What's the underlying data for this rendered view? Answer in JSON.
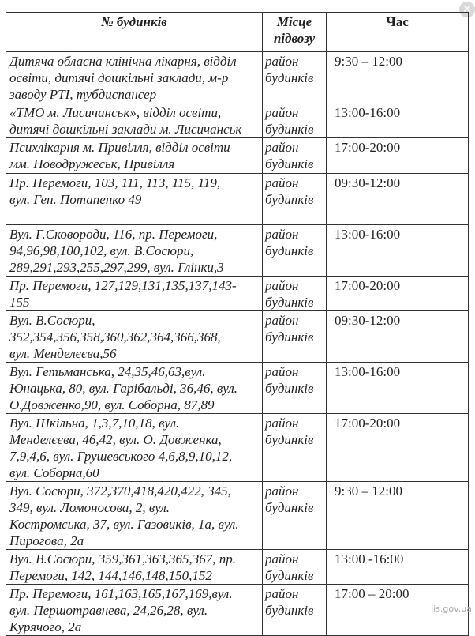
{
  "table": {
    "headers": [
      "№ будинків",
      "Місце\nпідвозу",
      "Час"
    ],
    "rows": [
      {
        "address": "Дитяча обласна клінічна лікарня, відділ\nосвіти, дитячі дошкільні заклади, м-р\nзаводу РТІ, тубдиспансер",
        "place": " район\nбудинків",
        "time": " 9:30 – 12:00"
      },
      {
        "address": "«ТМО м. Лисичанськ», відділ освіти,\nдитячі дошкільні заклади м. Лисичанськ",
        "place": "район\nбудинків",
        "time": "13:00-16:00"
      },
      {
        "address": "Психлікарня м. Привілля, відділ освіти\nмм. Новодружеськ, Привілля",
        "place": " район\nбудинків",
        "time": "  17:00-20:00"
      },
      {
        "address": "Пр. Перемоги, 103, 111, 113, 115, 119,\nвул. Ген. Потапенко 49",
        "place": "район\nбудинків",
        "time": " 09:30-12:00"
      },
      {
        "address": "Вул. Г.Сковороди, 116, пр. Перемоги,\n94,96,98,100,102, вул. В.Сосюри,\n289,291,293,255,297,299, вул. Глінки,3",
        "place": "район\nбудинків",
        "time": " 13:00-16:00"
      },
      {
        "address": "Пр. Перемоги, 127,129,131,135,137,143-\n155",
        "place": "район\nбудинків",
        "time": "17:00-20:00"
      },
      {
        "address": "Вул. В.Сосюри,\n352,354,356,358,360,362,364,366,368,\nвул. Менделєєва,56",
        "place": " район\nбудинків",
        "time": "09:30-12:00"
      },
      {
        "address": "Вул. Гетьманська, 24,35,46,63,вул.\nЮнацька, 80, вул. Гарібальді, 36,46, вул.\nО.Довженко,90, вул. Соборна, 87,89",
        "place": "район\nбудинків",
        "time": "13:00-16:00"
      },
      {
        "address": "Вул. Шкільна, 1,3,7,10,18, вул.\nМенделєєва, 46,42, вул. О. Довженка,\n7,9,4,6, вул. Грушевського 4,6,8,9,10,12,\nвул. Соборна,60",
        "place": "район\nбудинків",
        "time": "17:00-20:00"
      },
      {
        "address": "Вул. Сосюри, 372,370,418,420,422, 345,\n349, вул. Ломоносова, 2, вул.\nКостромська, 37, вул. Газовиків, 1а, вул.\nПирогова, 2а",
        "place": "район\nбудинків",
        "time": "9:30 – 12:00"
      },
      {
        "address": "Вул. В.Сосюри, 359,361,363,365,367, пр.\nПеремоги, 142, 144,146,148,150,152",
        "place": "район\nбудинків",
        "time": "13:00 -16:00"
      },
      {
        "address": "Пр. Перемоги, 161,163,165,167,169,вул.\nвул. Першотравнева, 24,26,28, вул.\nКурячого, 2а",
        "place": "район\nбудинків",
        "time": "17:00 – 20:00"
      }
    ]
  },
  "watermark": "lis.gov.ua",
  "close_icon": "close-icon"
}
